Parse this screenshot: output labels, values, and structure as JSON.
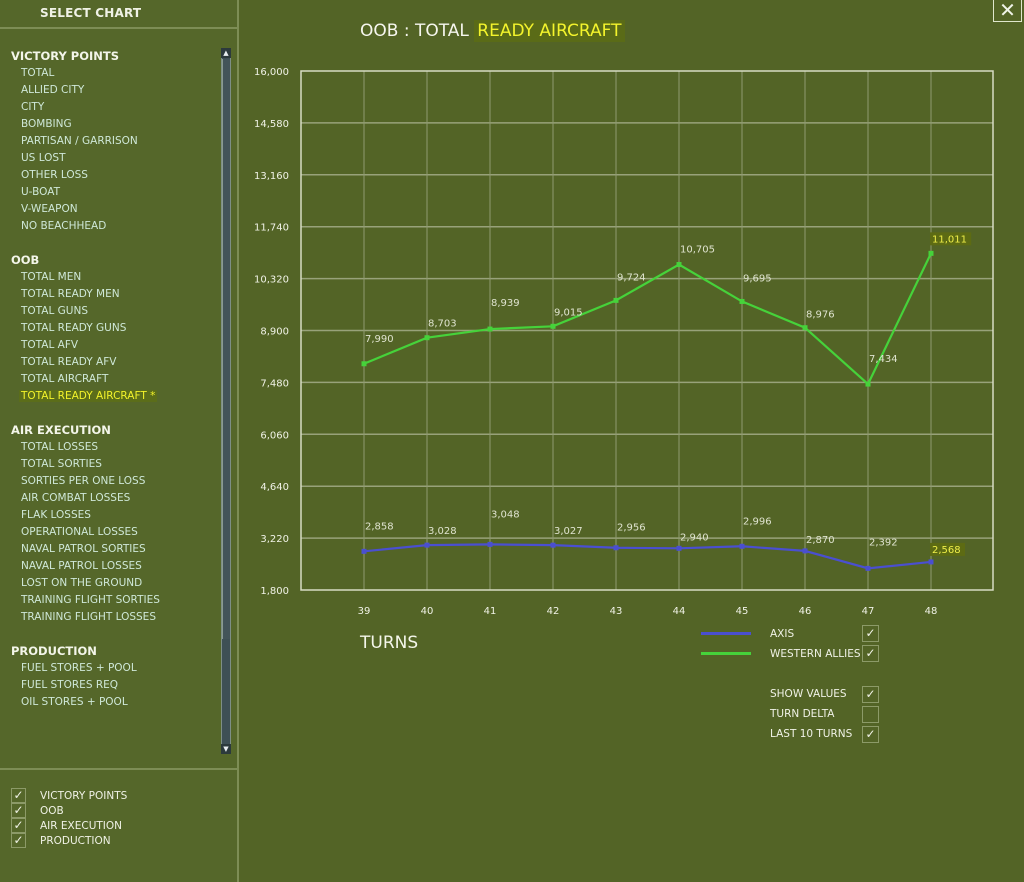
{
  "sidebar": {
    "header": "SELECT CHART",
    "groups": [
      {
        "title": "VICTORY POINTS",
        "items": [
          "TOTAL",
          "ALLIED CITY",
          "CITY",
          "BOMBING",
          "PARTISAN / GARRISON",
          "US LOST",
          "OTHER LOSS",
          "U-BOAT",
          "V-WEAPON",
          "NO BEACHHEAD"
        ]
      },
      {
        "title": "OOB",
        "items": [
          "TOTAL MEN",
          "TOTAL READY MEN",
          "TOTAL GUNS",
          "TOTAL READY GUNS",
          "TOTAL AFV",
          "TOTAL READY AFV",
          "TOTAL AIRCRAFT",
          "TOTAL READY AIRCRAFT *"
        ],
        "selected_index": 7
      },
      {
        "title": "AIR EXECUTION",
        "items": [
          "TOTAL LOSSES",
          "TOTAL SORTIES",
          "SORTIES PER ONE LOSS",
          "AIR COMBAT LOSSES",
          "FLAK LOSSES",
          "OPERATIONAL LOSSES",
          "NAVAL PATROL SORTIES",
          "NAVAL PATROL LOSSES",
          "LOST ON THE GROUND",
          "TRAINING FLIGHT SORTIES",
          "TRAINING FLIGHT LOSSES"
        ]
      },
      {
        "title": "PRODUCTION",
        "items": [
          "FUEL STORES + POOL",
          "FUEL STORES REQ",
          "OIL STORES + POOL"
        ]
      }
    ],
    "filters": [
      {
        "label": "VICTORY POINTS",
        "checked": true
      },
      {
        "label": "OOB",
        "checked": true
      },
      {
        "label": "AIR EXECUTION",
        "checked": true
      },
      {
        "label": "PRODUCTION",
        "checked": true
      }
    ]
  },
  "header": {
    "title_prefix": "OOB : TOTAL",
    "title_highlight": "READY AIRCRAFT",
    "close_icon": "✕"
  },
  "options": {
    "show_values": {
      "label": "SHOW VALUES",
      "checked": true
    },
    "turn_delta": {
      "label": "TURN DELTA",
      "checked": false
    },
    "last_10_turns": {
      "label": "LAST 10 TURNS",
      "checked": true
    }
  },
  "colors": {
    "background": "#536426",
    "axis_series": "#4a4fd0",
    "western_allies_series": "#46d23a",
    "highlight_text": "#f4f42c",
    "grid": "#9aa57c"
  },
  "chart_data": {
    "type": "line",
    "title": "OOB : TOTAL READY AIRCRAFT",
    "xlabel": "TURNS",
    "ylabel": "",
    "x": [
      39,
      40,
      41,
      42,
      43,
      44,
      45,
      46,
      47,
      48
    ],
    "yticks": [
      "1,800",
      "3,220",
      "4,640",
      "6,060",
      "7,480",
      "8,900",
      "10,320",
      "11,740",
      "13,160",
      "14,580",
      "16,000"
    ],
    "ylim": [
      1800,
      16000
    ],
    "grid": true,
    "legend_position": "bottom-right",
    "series": [
      {
        "name": "AXIS",
        "color": "#4a4fd0",
        "values": [
          2858,
          3028,
          3048,
          3027,
          2956,
          2940,
          2996,
          2870,
          2392,
          2568
        ],
        "labels": [
          "2,858",
          "3,028",
          "3,048",
          "3,027",
          "2,956",
          "2,940",
          "2,996",
          "2,870",
          "2,392",
          "2,568"
        ]
      },
      {
        "name": "WESTERN ALLIES",
        "color": "#46d23a",
        "values": [
          7990,
          8703,
          8939,
          9015,
          9724,
          10705,
          9695,
          8976,
          7434,
          11011
        ],
        "labels": [
          "7,990",
          "8,703",
          "8,939",
          "9,015",
          "9,724",
          "10,705",
          "9,695",
          "8,976",
          "7,434",
          "11,011"
        ]
      }
    ]
  }
}
